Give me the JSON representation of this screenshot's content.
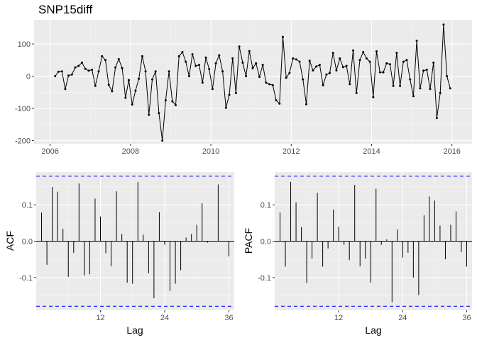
{
  "chart_data": [
    {
      "type": "line",
      "title": "SNP15diff",
      "xlabel": "",
      "ylabel": "",
      "xlim": [
        2005.6,
        2016.5
      ],
      "ylim": [
        -210,
        175
      ],
      "x_ticks": [
        2006,
        2008,
        2010,
        2012,
        2014,
        2016
      ],
      "y_ticks": [
        -200,
        -100,
        0,
        100
      ],
      "x_start": 2006.125,
      "x_step": 0.08333,
      "values": [
        0,
        14,
        15,
        -40,
        2,
        5,
        27,
        32,
        42,
        23,
        17,
        20,
        -30,
        15,
        62,
        50,
        -27,
        -47,
        27,
        53,
        25,
        -67,
        -12,
        -88,
        -45,
        -8,
        62,
        15,
        -120,
        -10,
        15,
        -115,
        -200,
        -75,
        15,
        -78,
        -90,
        62,
        75,
        45,
        0,
        68,
        32,
        35,
        -20,
        58,
        22,
        -40,
        40,
        65,
        15,
        -98,
        -58,
        55,
        -52,
        92,
        42,
        0,
        78,
        25,
        40,
        -2,
        35,
        -20,
        -25,
        -28,
        -75,
        -85,
        122,
        -5,
        10,
        55,
        52,
        45,
        -10,
        -87,
        48,
        18,
        30,
        35,
        -28,
        5,
        10,
        72,
        18,
        55,
        28,
        32,
        -25,
        80,
        -52,
        50,
        75,
        55,
        45,
        -65,
        77,
        12,
        12,
        40,
        37,
        -30,
        72,
        -30,
        45,
        50,
        -10,
        -62,
        110,
        -38,
        17,
        20,
        -40,
        42,
        -130,
        -52,
        160,
        0,
        -38
      ]
    },
    {
      "type": "bar",
      "ylabel": "ACF",
      "xlabel": "Lag",
      "x_ticks": [
        12,
        24,
        36
      ],
      "y_ticks": [
        -0.1,
        0.0,
        0.1
      ],
      "ylim": [
        -0.19,
        0.19
      ],
      "xlim": [
        0,
        37
      ],
      "ci_bound": 0.179,
      "lags": [
        1,
        2,
        3,
        4,
        5,
        6,
        7,
        8,
        9,
        10,
        11,
        12,
        13,
        14,
        15,
        16,
        17,
        18,
        19,
        20,
        21,
        22,
        23,
        24,
        25,
        26,
        27,
        28,
        29,
        30,
        31,
        32,
        33,
        34,
        35,
        36
      ],
      "values": [
        0.079,
        -0.065,
        0.149,
        0.136,
        0.034,
        -0.098,
        -0.032,
        0.159,
        -0.094,
        -0.091,
        0.117,
        0.068,
        -0.033,
        -0.069,
        0.137,
        0.02,
        -0.114,
        -0.117,
        0.163,
        0.018,
        -0.088,
        -0.157,
        0.08,
        -0.01,
        -0.137,
        -0.117,
        -0.08,
        0.01,
        0.02,
        0.045,
        0.104,
        -0.004,
        0.0,
        0.156,
        0.0,
        -0.042
      ]
    },
    {
      "type": "bar",
      "ylabel": "PACF",
      "xlabel": "Lag",
      "x_ticks": [
        12,
        24,
        36
      ],
      "y_ticks": [
        -0.1,
        0.0,
        0.1
      ],
      "ylim": [
        -0.19,
        0.19
      ],
      "xlim": [
        0,
        37
      ],
      "ci_bound": 0.179,
      "lags": [
        1,
        2,
        3,
        4,
        5,
        6,
        7,
        8,
        9,
        10,
        11,
        12,
        13,
        14,
        15,
        16,
        17,
        18,
        19,
        20,
        21,
        22,
        23,
        24,
        25,
        26,
        27,
        28,
        29,
        30,
        31,
        32,
        33,
        34,
        35,
        36
      ],
      "values": [
        0.079,
        -0.07,
        0.163,
        0.107,
        0.039,
        -0.115,
        -0.048,
        0.133,
        -0.07,
        -0.02,
        0.087,
        0.04,
        -0.01,
        -0.052,
        0.155,
        -0.069,
        -0.048,
        -0.114,
        0.144,
        -0.01,
        0.005,
        -0.168,
        0.032,
        -0.045,
        -0.032,
        -0.1,
        -0.148,
        0.071,
        0.123,
        0.112,
        0.043,
        -0.05,
        0.045,
        0.082,
        -0.03,
        -0.07
      ]
    }
  ]
}
